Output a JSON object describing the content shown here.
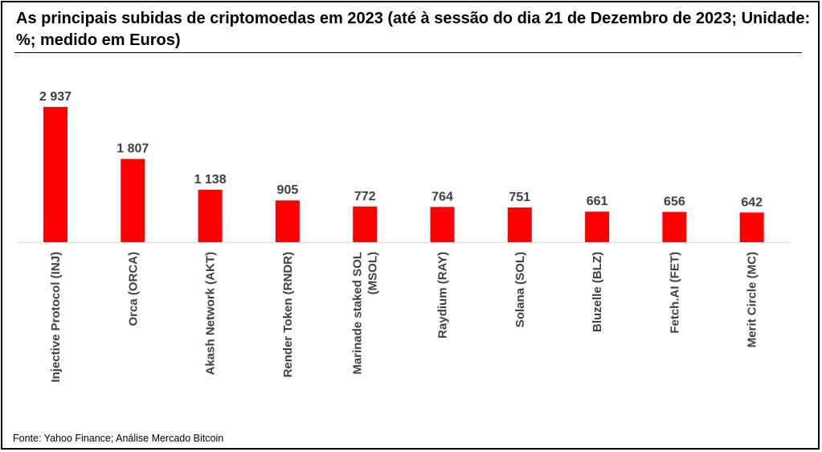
{
  "chart_data": {
    "type": "bar",
    "title": "As principais subidas de criptomoedas em 2023 (até à sessão do dia 21 de Dezembro de 2023; Unidade: %; medido em Euros)",
    "categories": [
      [
        "Injective Protocol (INJ)"
      ],
      [
        "Orca (ORCA)"
      ],
      [
        "Akash Network (AKT)"
      ],
      [
        "Render Token (RNDR)"
      ],
      [
        "Marinade staked SOL",
        "(MSOL)"
      ],
      [
        "Raydium (RAY)"
      ],
      [
        "Solana (SOL)"
      ],
      [
        "Bluzelle (BLZ)"
      ],
      [
        "Fetch.AI (FET)"
      ],
      [
        "Merit Circle (MC)"
      ]
    ],
    "values": [
      2937,
      1807,
      1138,
      905,
      772,
      764,
      751,
      661,
      656,
      642
    ],
    "value_labels": [
      "2 937",
      "1 807",
      "1 138",
      "905",
      "772",
      "764",
      "751",
      "661",
      "656",
      "642"
    ],
    "ylim": [
      0,
      2937
    ],
    "bar_color": "#ff0000",
    "axis_color": "#d9d9d9",
    "label_color": "#404040",
    "grid": false,
    "legend": "none"
  },
  "source": "Fonte: Yahoo Finance; Análise Mercado Bitcoin"
}
